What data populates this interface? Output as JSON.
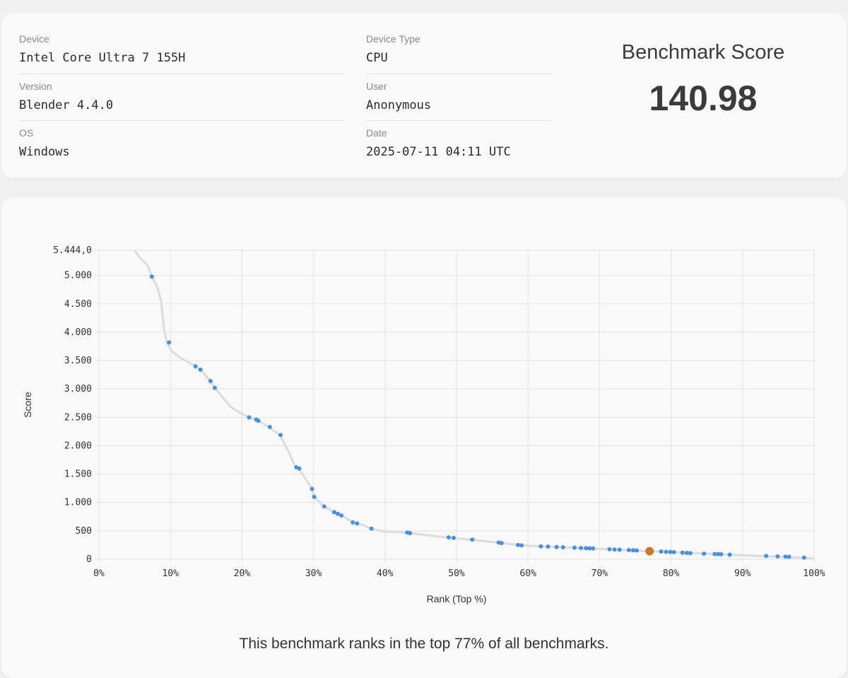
{
  "info": {
    "device_label": "Device",
    "device_value": "Intel Core Ultra 7 155H",
    "version_label": "Version",
    "version_value": "Blender 4.4.0",
    "os_label": "OS",
    "os_value": "Windows",
    "device_type_label": "Device Type",
    "device_type_value": "CPU",
    "user_label": "User",
    "user_value": "Anonymous",
    "date_label": "Date",
    "date_value": "2025-07-11 04:11 UTC"
  },
  "score": {
    "title": "Benchmark Score",
    "value": "140.98"
  },
  "summary": "This benchmark ranks in the top 77% of all benchmarks.",
  "colors": {
    "point": "#4a90e2",
    "highlight": "#c77a2a",
    "curve": "#dcdcdc",
    "grid": "#e3e3e3"
  },
  "chart_data": {
    "type": "scatter",
    "xlabel": "Rank (Top %)",
    "ylabel": "Score",
    "xlim": [
      0,
      100
    ],
    "ylim": [
      0,
      5444
    ],
    "x_ticks": [
      0,
      10,
      20,
      30,
      40,
      50,
      60,
      70,
      80,
      90,
      100
    ],
    "x_tick_labels": [
      "0%",
      "10%",
      "20%",
      "30%",
      "40%",
      "50%",
      "60%",
      "70%",
      "80%",
      "90%",
      "100%"
    ],
    "y_ticks": [
      0,
      500,
      1000,
      1500,
      2000,
      2500,
      3000,
      3500,
      4000,
      4500,
      5000,
      5444
    ],
    "y_tick_labels": [
      "0",
      "500",
      "1.000",
      "1.500",
      "2.000",
      "2.500",
      "3.000",
      "3.500",
      "4.000",
      "4.500",
      "5.000",
      "5.444,0"
    ],
    "grid": true,
    "curve": [
      [
        5,
        5444
      ],
      [
        5.8,
        5300
      ],
      [
        6.8,
        5180
      ],
      [
        7.4,
        4980
      ],
      [
        8.2,
        4780
      ],
      [
        8.7,
        4550
      ],
      [
        9.1,
        4050
      ],
      [
        9.5,
        3820
      ],
      [
        10.2,
        3660
      ],
      [
        11.5,
        3540
      ],
      [
        13.5,
        3400
      ],
      [
        14.2,
        3340
      ],
      [
        15.6,
        3140
      ],
      [
        16.2,
        3020
      ],
      [
        17.5,
        2820
      ],
      [
        18.5,
        2680
      ],
      [
        20,
        2560
      ],
      [
        21,
        2500
      ],
      [
        22,
        2460
      ],
      [
        23.5,
        2350
      ],
      [
        25.3,
        2190
      ],
      [
        26.5,
        1900
      ],
      [
        27.5,
        1620
      ],
      [
        28,
        1580
      ],
      [
        29,
        1400
      ],
      [
        29.8,
        1240
      ],
      [
        30.1,
        1100
      ],
      [
        31,
        980
      ],
      [
        31.5,
        930
      ],
      [
        33,
        820
      ],
      [
        34,
        770
      ],
      [
        35.5,
        650
      ],
      [
        37,
        600
      ],
      [
        38,
        540
      ],
      [
        40,
        485
      ],
      [
        42,
        480
      ],
      [
        43.5,
        460
      ],
      [
        46,
        420
      ],
      [
        49,
        380
      ],
      [
        52.5,
        340
      ],
      [
        56,
        290
      ],
      [
        59,
        245
      ],
      [
        62,
        225
      ],
      [
        66,
        205
      ],
      [
        70,
        182
      ],
      [
        74,
        160
      ],
      [
        77,
        141
      ],
      [
        80,
        126
      ],
      [
        83,
        108
      ],
      [
        86,
        92
      ],
      [
        89,
        75
      ],
      [
        92,
        60
      ],
      [
        95,
        45
      ],
      [
        97,
        35
      ],
      [
        98.7,
        25
      ],
      [
        100,
        10
      ]
    ],
    "points": [
      {
        "x": 7.4,
        "y": 4980
      },
      {
        "x": 9.8,
        "y": 3820
      },
      {
        "x": 13.5,
        "y": 3400
      },
      {
        "x": 14.2,
        "y": 3340
      },
      {
        "x": 15.6,
        "y": 3140
      },
      {
        "x": 16.2,
        "y": 3020
      },
      {
        "x": 21,
        "y": 2500
      },
      {
        "x": 22,
        "y": 2460
      },
      {
        "x": 22.3,
        "y": 2440
      },
      {
        "x": 23.9,
        "y": 2330
      },
      {
        "x": 25.4,
        "y": 2190
      },
      {
        "x": 27.6,
        "y": 1620
      },
      {
        "x": 28,
        "y": 1600
      },
      {
        "x": 29.8,
        "y": 1240
      },
      {
        "x": 30.1,
        "y": 1100
      },
      {
        "x": 31.5,
        "y": 930
      },
      {
        "x": 32.9,
        "y": 830
      },
      {
        "x": 33.4,
        "y": 800
      },
      {
        "x": 33.9,
        "y": 770
      },
      {
        "x": 35.5,
        "y": 650
      },
      {
        "x": 36.1,
        "y": 630
      },
      {
        "x": 38.1,
        "y": 540
      },
      {
        "x": 43.1,
        "y": 470
      },
      {
        "x": 43.5,
        "y": 460
      },
      {
        "x": 48.9,
        "y": 385
      },
      {
        "x": 49.6,
        "y": 375
      },
      {
        "x": 52.2,
        "y": 345
      },
      {
        "x": 55.9,
        "y": 295
      },
      {
        "x": 56.3,
        "y": 285
      },
      {
        "x": 58.6,
        "y": 250
      },
      {
        "x": 59.1,
        "y": 245
      },
      {
        "x": 61.8,
        "y": 228
      },
      {
        "x": 62.8,
        "y": 222
      },
      {
        "x": 64,
        "y": 215
      },
      {
        "x": 64.9,
        "y": 210
      },
      {
        "x": 66.5,
        "y": 202
      },
      {
        "x": 67.4,
        "y": 198
      },
      {
        "x": 68.1,
        "y": 195
      },
      {
        "x": 68.6,
        "y": 192
      },
      {
        "x": 69.1,
        "y": 190
      },
      {
        "x": 71.4,
        "y": 176
      },
      {
        "x": 72.1,
        "y": 172
      },
      {
        "x": 72.8,
        "y": 168
      },
      {
        "x": 74.1,
        "y": 162
      },
      {
        "x": 74.7,
        "y": 158
      },
      {
        "x": 75.2,
        "y": 155
      },
      {
        "x": 78.6,
        "y": 135
      },
      {
        "x": 79.3,
        "y": 130
      },
      {
        "x": 79.9,
        "y": 127
      },
      {
        "x": 80.4,
        "y": 124
      },
      {
        "x": 81.6,
        "y": 115
      },
      {
        "x": 82.2,
        "y": 112
      },
      {
        "x": 82.7,
        "y": 108
      },
      {
        "x": 84.6,
        "y": 98
      },
      {
        "x": 86.1,
        "y": 92
      },
      {
        "x": 86.6,
        "y": 90
      },
      {
        "x": 87,
        "y": 88
      },
      {
        "x": 88.2,
        "y": 80
      },
      {
        "x": 93.3,
        "y": 58
      },
      {
        "x": 94.9,
        "y": 50
      },
      {
        "x": 96,
        "y": 45
      },
      {
        "x": 96.5,
        "y": 42
      },
      {
        "x": 98.6,
        "y": 28
      }
    ],
    "highlight": {
      "x": 77,
      "y": 140.98
    }
  }
}
